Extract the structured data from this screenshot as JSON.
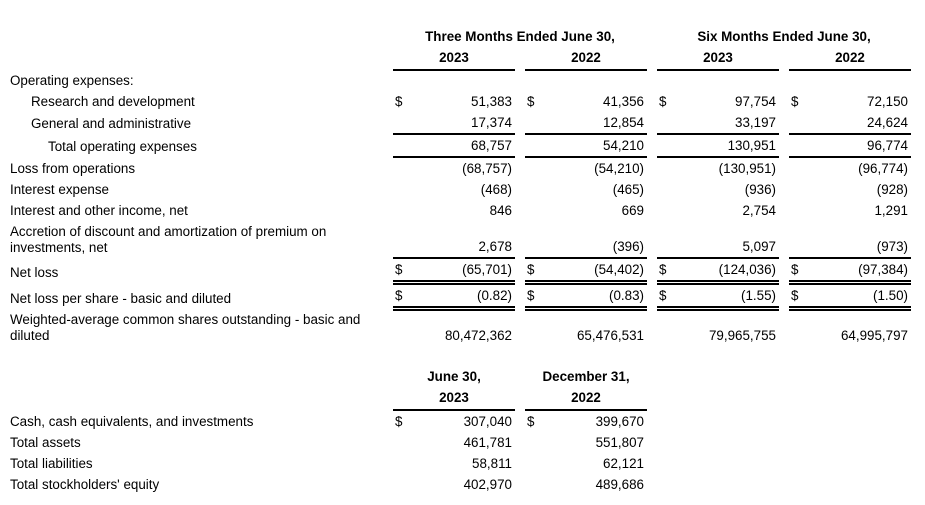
{
  "currency_symbol": "$",
  "colors": {
    "text": "#000000",
    "background": "#ffffff",
    "rule": "#000000"
  },
  "income_statement": {
    "group_headers": [
      {
        "label": "Three Months Ended June 30,",
        "span": 2
      },
      {
        "label": "Six Months Ended June 30,",
        "span": 2
      }
    ],
    "year_headers": [
      "2023",
      "2022",
      "2023",
      "2022"
    ],
    "rows": [
      {
        "label": "Operating expenses:",
        "indent": 0,
        "dollar": false,
        "values": null,
        "rule": "none"
      },
      {
        "label": "Research and development",
        "indent": 1,
        "dollar": true,
        "values": [
          "51,383",
          "41,356",
          "97,754",
          "72,150"
        ],
        "rule": "none"
      },
      {
        "label": "General and administrative",
        "indent": 1,
        "dollar": false,
        "values": [
          "17,374",
          "12,854",
          "33,197",
          "24,624"
        ],
        "rule": "single"
      },
      {
        "label": "Total operating expenses",
        "indent": 2,
        "dollar": false,
        "values": [
          "68,757",
          "54,210",
          "130,951",
          "96,774"
        ],
        "rule": "single"
      },
      {
        "label": "Loss from operations",
        "indent": 0,
        "dollar": false,
        "values": [
          "(68,757)",
          "(54,210)",
          "(130,951)",
          "(96,774)"
        ],
        "rule": "none"
      },
      {
        "label": "Interest expense",
        "indent": 0,
        "dollar": false,
        "values": [
          "(468)",
          "(465)",
          "(936)",
          "(928)"
        ],
        "rule": "none"
      },
      {
        "label": "Interest and other income, net",
        "indent": 0,
        "dollar": false,
        "values": [
          "846",
          "669",
          "2,754",
          "1,291"
        ],
        "rule": "none"
      },
      {
        "label": "Accretion of discount and amortization of premium on investments, net",
        "indent": 0,
        "dollar": false,
        "values": [
          "2,678",
          "(396)",
          "5,097",
          "(973)"
        ],
        "rule": "single"
      },
      {
        "label": "Net loss",
        "indent": 0,
        "dollar": true,
        "values": [
          "(65,701)",
          "(54,402)",
          "(124,036)",
          "(97,384)"
        ],
        "rule": "double"
      },
      {
        "label": "Net loss per share - basic and diluted",
        "indent": 0,
        "dollar": true,
        "values": [
          "(0.82)",
          "(0.83)",
          "(1.55)",
          "(1.50)"
        ],
        "rule": "double"
      },
      {
        "label": "Weighted-average common shares outstanding - basic and diluted",
        "indent": 0,
        "dollar": false,
        "values": [
          "80,472,362",
          "65,476,531",
          "79,965,755",
          "64,995,797"
        ],
        "rule": "none"
      }
    ]
  },
  "balance_summary": {
    "group_headers": [
      {
        "label": "June 30,",
        "span": 1
      },
      {
        "label": "December 31,",
        "span": 1
      }
    ],
    "year_headers": [
      "2023",
      "2022"
    ],
    "rows": [
      {
        "label": "Cash, cash equivalents, and investments",
        "indent": 0,
        "dollar": true,
        "values": [
          "307,040",
          "399,670"
        ],
        "rule": "none"
      },
      {
        "label": "Total assets",
        "indent": 0,
        "dollar": false,
        "values": [
          "461,781",
          "551,807"
        ],
        "rule": "none"
      },
      {
        "label": "Total liabilities",
        "indent": 0,
        "dollar": false,
        "values": [
          "58,811",
          "62,121"
        ],
        "rule": "none"
      },
      {
        "label": "Total stockholders' equity",
        "indent": 0,
        "dollar": false,
        "values": [
          "402,970",
          "489,686"
        ],
        "rule": "none"
      }
    ]
  }
}
